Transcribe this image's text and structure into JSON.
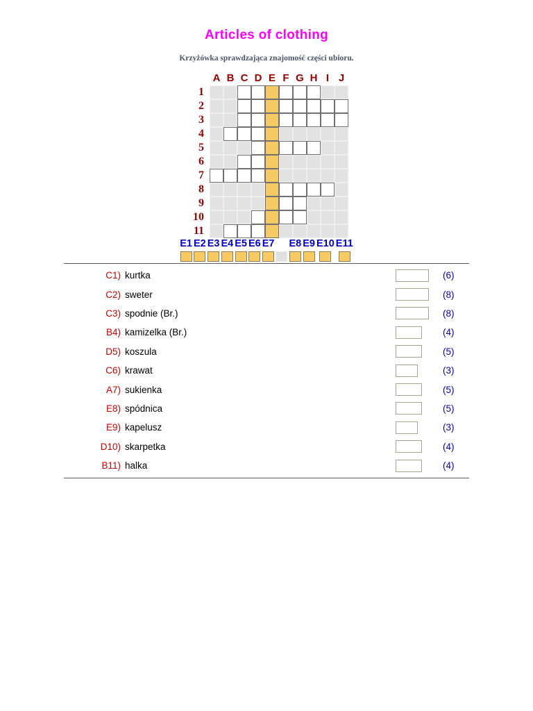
{
  "page": {
    "title": "Articles of clothing",
    "subtitle": "Krzyżówka sprawdzająca znajomość części ubioru."
  },
  "grid": {
    "columns": [
      "A",
      "B",
      "C",
      "D",
      "E",
      "F",
      "G",
      "H",
      "I",
      "J"
    ],
    "rows": [
      "1",
      "2",
      "3",
      "4",
      "5",
      "6",
      "7",
      "8",
      "9",
      "10",
      "11"
    ],
    "highlight_column": "E",
    "colors": {
      "highlight": "#f8ca64",
      "word_cell": "#ffffff",
      "empty_cell": "#e2e2e2",
      "header_text": "#990000",
      "cell_border": "#6f6f6f"
    },
    "words": [
      {
        "row": "1",
        "start": "C",
        "length": 6
      },
      {
        "row": "2",
        "start": "C",
        "length": 8
      },
      {
        "row": "3",
        "start": "C",
        "length": 8
      },
      {
        "row": "4",
        "start": "B",
        "length": 4
      },
      {
        "row": "5",
        "start": "D",
        "length": 5
      },
      {
        "row": "6",
        "start": "C",
        "length": 3
      },
      {
        "row": "7",
        "start": "A",
        "length": 5
      },
      {
        "row": "8",
        "start": "E",
        "length": 5
      },
      {
        "row": "9",
        "start": "E",
        "length": 3
      },
      {
        "row": "10",
        "start": "D",
        "length": 4
      },
      {
        "row": "11",
        "start": "B",
        "length": 4
      }
    ]
  },
  "answer_strip": {
    "labels": [
      "E1",
      "E2",
      "E3",
      "E4",
      "E5",
      "E6",
      "E7",
      "",
      "E8",
      "E9",
      "E10",
      "E11"
    ],
    "label_color": "#0000cc"
  },
  "clues": [
    {
      "label": "C1)",
      "text": "kurtka",
      "length_hint": "(6)",
      "size": 6
    },
    {
      "label": "C2)",
      "text": "sweter",
      "length_hint": "(8)",
      "size": 8
    },
    {
      "label": "C3)",
      "text": "spodnie (Br.)",
      "length_hint": "(8)",
      "size": 8
    },
    {
      "label": "B4)",
      "text": "kamizelka (Br.)",
      "length_hint": "(4)",
      "size": 4
    },
    {
      "label": "D5)",
      "text": "koszula",
      "length_hint": "(5)",
      "size": 5
    },
    {
      "label": "C6)",
      "text": "krawat",
      "length_hint": "(3)",
      "size": 3
    },
    {
      "label": "A7)",
      "text": "sukienka",
      "length_hint": "(5)",
      "size": 5
    },
    {
      "label": "E8)",
      "text": "spódnica",
      "length_hint": "(5)",
      "size": 5
    },
    {
      "label": "E9)",
      "text": "kapelusz",
      "length_hint": "(3)",
      "size": 3
    },
    {
      "label": "D10)",
      "text": "skarpetka",
      "length_hint": "(4)",
      "size": 4
    },
    {
      "label": "B11)",
      "text": "halka",
      "length_hint": "(4)",
      "size": 4
    }
  ]
}
